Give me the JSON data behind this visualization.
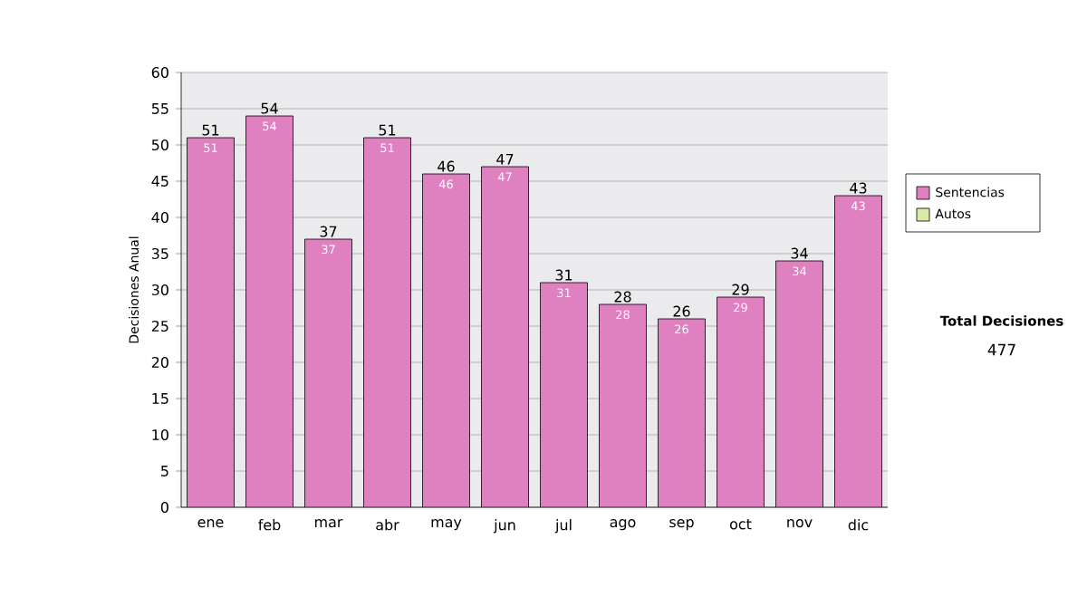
{
  "chart_data": {
    "type": "bar",
    "ylabel": "Decisiones Anual",
    "categories": [
      "ene",
      "feb",
      "mar",
      "abr",
      "may",
      "jun",
      "jul",
      "ago",
      "sep",
      "oct",
      "nov",
      "dic"
    ],
    "series": [
      {
        "name": "Sentencias",
        "color": "#df80c0",
        "values": [
          51,
          54,
          37,
          51,
          46,
          47,
          31,
          28,
          26,
          29,
          34,
          43
        ]
      },
      {
        "name": "Autos",
        "color": "#d8eca8",
        "values": [
          null,
          null,
          null,
          null,
          null,
          null,
          null,
          null,
          null,
          null,
          null,
          null
        ]
      }
    ],
    "stacked": true,
    "data_labels": true,
    "totals": [
      "51",
      "54",
      "37",
      "51",
      "46",
      "47",
      "31",
      "28",
      "26",
      "29",
      "34",
      "43"
    ],
    "ylim": [
      0,
      60
    ],
    "yticks": [
      0,
      5,
      10,
      15,
      20,
      25,
      30,
      35,
      40,
      45,
      50,
      55,
      60
    ],
    "grid": "y",
    "legend": "right",
    "annotations": [
      "Total Decisiones",
      "477"
    ]
  }
}
